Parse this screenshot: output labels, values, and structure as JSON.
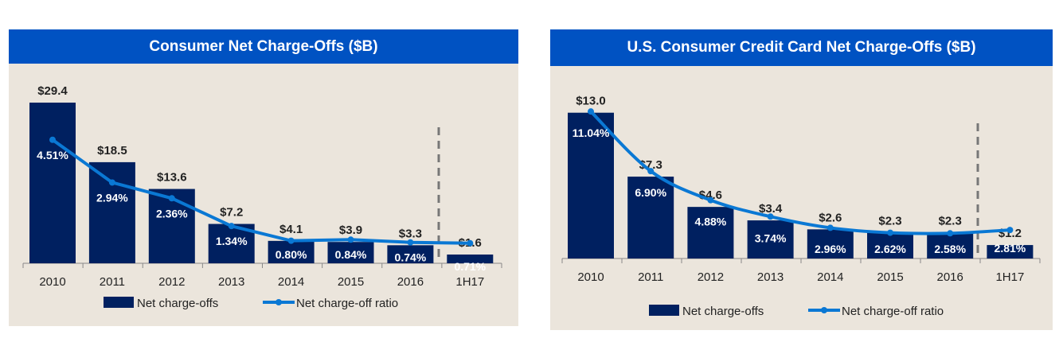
{
  "colors": {
    "header": "#0052c2",
    "bar": "#002060",
    "line": "#0a78d4",
    "background": "#ebe5dc"
  },
  "chart_data": [
    {
      "type": "bar+line",
      "title": "Consumer Net Charge-Offs ($B)",
      "categories": [
        "2010",
        "2011",
        "2012",
        "2013",
        "2014",
        "2015",
        "2016",
        "1H17"
      ],
      "series": [
        {
          "name": "Net charge-offs",
          "type": "bar",
          "values": [
            29.4,
            18.5,
            13.6,
            7.2,
            4.1,
            3.9,
            3.3,
            1.6
          ],
          "labels": [
            "$29.4",
            "$18.5",
            "$13.6",
            "$7.2",
            "$4.1",
            "$3.9",
            "$3.3",
            "$1.6"
          ]
        },
        {
          "name": "Net charge-off ratio",
          "type": "line",
          "values": [
            4.51,
            2.94,
            2.36,
            1.34,
            0.8,
            0.84,
            0.74,
            0.71
          ],
          "labels": [
            "4.51%",
            "2.94%",
            "2.36%",
            "1.34%",
            "0.80%",
            "0.84%",
            "0.74%",
            "0.71%"
          ]
        }
      ],
      "legend": "bottom",
      "grid": false,
      "divider_before": "1H17"
    },
    {
      "type": "bar+line",
      "title": "U.S. Consumer Credit Card Net Charge-Offs ($B)",
      "categories": [
        "2010",
        "2011",
        "2012",
        "2013",
        "2014",
        "2015",
        "2016",
        "1H17"
      ],
      "series": [
        {
          "name": "Net charge-offs",
          "type": "bar",
          "values": [
            13.0,
            7.3,
            4.6,
            3.4,
            2.6,
            2.3,
            2.3,
            1.2
          ],
          "labels": [
            "$13.0",
            "$7.3",
            "$4.6",
            "$3.4",
            "$2.6",
            "$2.3",
            "$2.3",
            "$1.2"
          ]
        },
        {
          "name": "Net charge-off ratio",
          "type": "line",
          "values": [
            11.04,
            6.9,
            4.88,
            3.74,
            2.96,
            2.62,
            2.58,
            2.81
          ],
          "labels": [
            "11.04%",
            "6.90%",
            "4.88%",
            "3.74%",
            "2.96%",
            "2.62%",
            "2.58%",
            "2.81%"
          ]
        }
      ],
      "legend": "bottom",
      "grid": false,
      "divider_before": "1H17"
    }
  ]
}
